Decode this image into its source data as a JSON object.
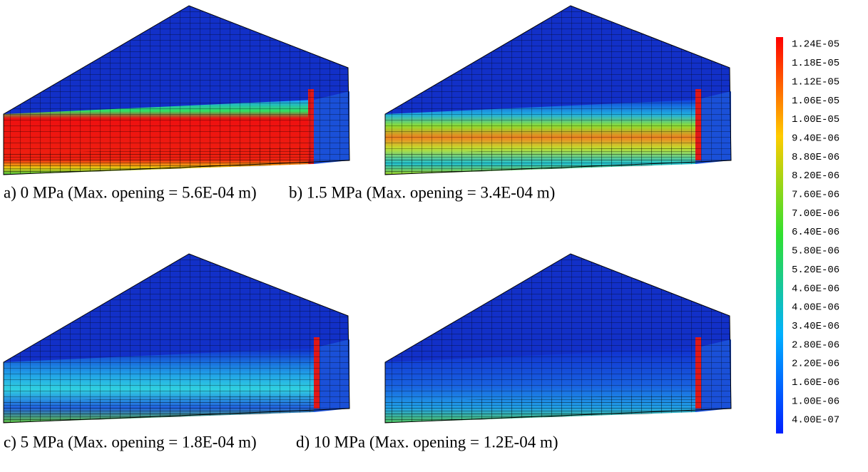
{
  "panels": [
    {
      "caption": "a) 0 MPa (Max. opening = 5.6E-04 m)"
    },
    {
      "caption": "b) 1.5 MPa (Max. opening = 3.4E-04 m)"
    },
    {
      "caption": "c) 5 MPa (Max. opening = 1.8E-04 m)"
    },
    {
      "caption": "d) 10 MPa (Max. opening = 1.2E-04 m)"
    }
  ],
  "colorbar": {
    "labels": [
      "1.24E-05",
      "1.18E-05",
      "1.12E-05",
      "1.06E-05",
      "1.00E-05",
      "9.40E-06",
      "8.80E-06",
      "8.20E-06",
      "7.60E-06",
      "7.00E-06",
      "6.40E-06",
      "5.80E-06",
      "5.20E-06",
      "4.60E-06",
      "4.00E-06",
      "3.40E-06",
      "2.80E-06",
      "2.20E-06",
      "1.60E-06",
      "1.00E-06",
      "4.00E-07"
    ]
  }
}
